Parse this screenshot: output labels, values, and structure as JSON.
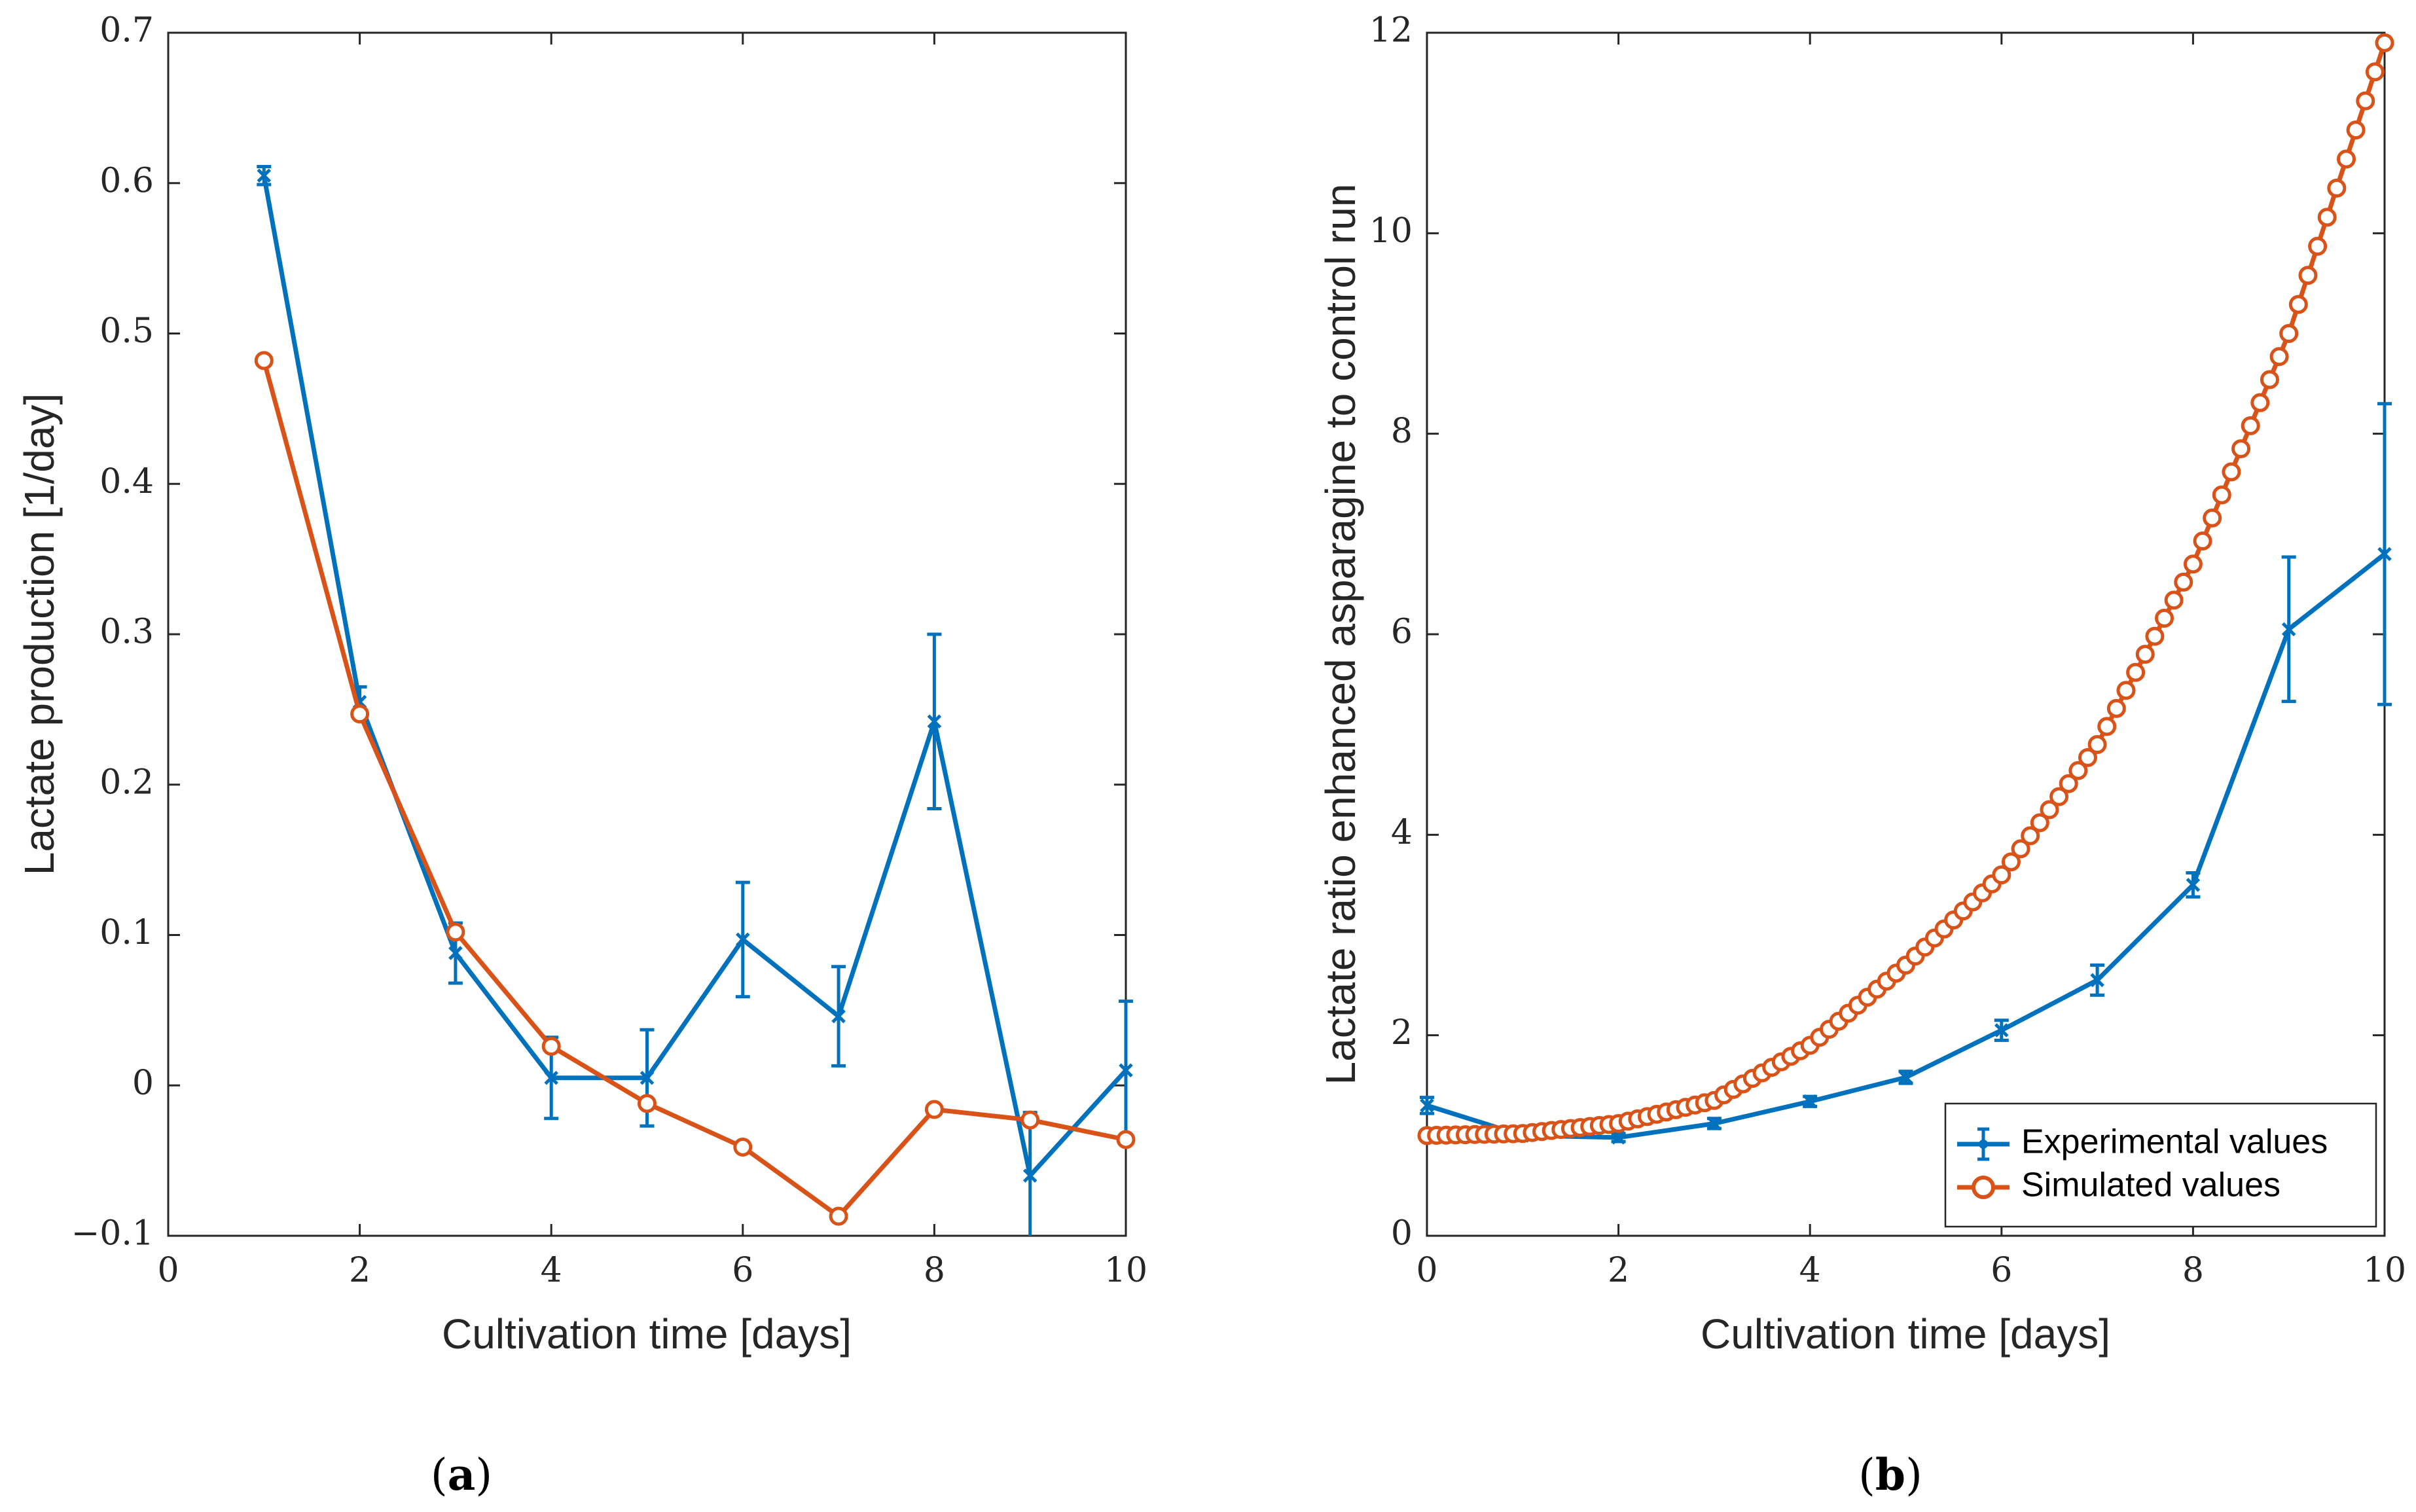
{
  "colors": {
    "experimental": "#0072BD",
    "simulated": "#D95319",
    "axis": "#262626"
  },
  "chart_data": [
    {
      "type": "line",
      "panel_label": {
        "open": "(",
        "letter": "a",
        "close": ")"
      },
      "xlabel": "Cultivation time [days]",
      "ylabel": "Lactate production [1/day]",
      "xlim": [
        0,
        10
      ],
      "ylim": [
        -0.1,
        0.7
      ],
      "xticks": [
        0,
        2,
        4,
        6,
        8,
        10
      ],
      "xtick_labels": [
        "0",
        "2",
        "4",
        "6",
        "8",
        "10"
      ],
      "yticks": [
        -0.1,
        0,
        0.1,
        0.2,
        0.3,
        0.4,
        0.5,
        0.6,
        0.7
      ],
      "ytick_labels": [
        "−0.1",
        "0",
        "0.1",
        "0.2",
        "0.3",
        "0.4",
        "0.5",
        "0.6",
        "0.7"
      ],
      "grid": false,
      "legend": null,
      "series": [
        {
          "name": "Experimental values",
          "color_key": "experimental",
          "marker": "x",
          "x": [
            1,
            2,
            3,
            4,
            5,
            6,
            7,
            8,
            9,
            10
          ],
          "y": [
            0.605,
            0.255,
            0.088,
            0.005,
            0.005,
            0.097,
            0.046,
            0.242,
            -0.06,
            0.01
          ],
          "err": [
            0.006,
            0.01,
            0.02,
            0.027,
            0.032,
            0.038,
            0.033,
            0.058,
            0.042,
            0.046
          ]
        },
        {
          "name": "Simulated values",
          "color_key": "simulated",
          "marker": "o",
          "x": [
            1,
            2,
            3,
            4,
            5,
            6,
            7,
            8,
            9,
            10
          ],
          "y": [
            0.482,
            0.247,
            0.102,
            0.026,
            -0.012,
            -0.041,
            -0.087,
            -0.016,
            -0.023,
            -0.036
          ]
        }
      ]
    },
    {
      "type": "line",
      "panel_label": {
        "open": "(",
        "letter": "b",
        "close": ")"
      },
      "xlabel": "Cultivation time [days]",
      "ylabel": "Lactate ratio enhanced asparagine to control run",
      "xlim": [
        0,
        10
      ],
      "ylim": [
        0,
        12
      ],
      "xticks": [
        0,
        2,
        4,
        6,
        8,
        10
      ],
      "xtick_labels": [
        "0",
        "2",
        "4",
        "6",
        "8",
        "10"
      ],
      "yticks": [
        0,
        2,
        4,
        6,
        8,
        10,
        12
      ],
      "ytick_labels": [
        "0",
        "2",
        "4",
        "6",
        "8",
        "10",
        "12"
      ],
      "grid": false,
      "legend": {
        "location": "bottom-right",
        "entries": [
          "Experimental values",
          "Simulated values"
        ]
      },
      "series": [
        {
          "name": "Experimental values",
          "color_key": "experimental",
          "marker": "x",
          "x": [
            0,
            1,
            2,
            3,
            4,
            5,
            6,
            7,
            8,
            9,
            10
          ],
          "y": [
            1.3,
            1.0,
            0.98,
            1.12,
            1.34,
            1.58,
            2.05,
            2.55,
            3.5,
            6.05,
            6.8
          ],
          "err": [
            0.08,
            0.03,
            0.04,
            0.05,
            0.05,
            0.06,
            0.1,
            0.15,
            0.12,
            0.72,
            1.5
          ]
        },
        {
          "name": "Simulated values",
          "color_key": "simulated",
          "marker": "o",
          "x_range": [
            0,
            10
          ],
          "samples": 101,
          "y_model": "baseline 1.0 at x=0, rising to about 1.9 at x=4, 3.6 at x=6, 6.7 at x=8 and 11.9 at x=10",
          "y_anchor_x": [
            0,
            1,
            2,
            3,
            4,
            5,
            6,
            7,
            8,
            9,
            10
          ],
          "y_anchor": [
            1.0,
            1.02,
            1.12,
            1.35,
            1.9,
            2.7,
            3.6,
            4.9,
            6.7,
            9.0,
            11.9
          ]
        }
      ]
    }
  ]
}
